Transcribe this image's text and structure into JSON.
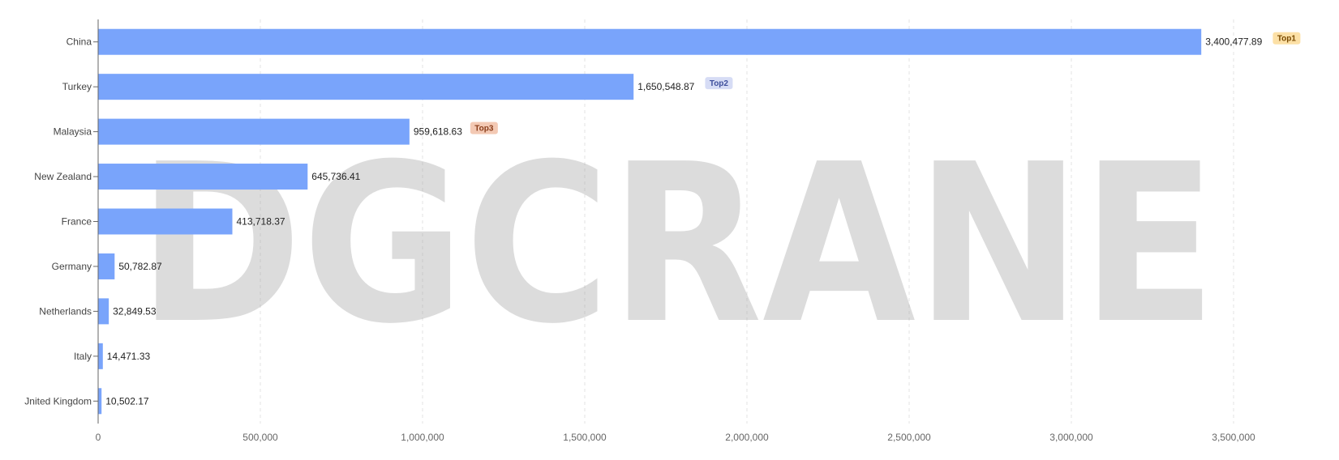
{
  "chart_data": {
    "type": "bar",
    "orientation": "horizontal",
    "categories": [
      "China",
      "Turkey",
      "Malaysia",
      "New Zealand",
      "France",
      "Germany",
      "Netherlands",
      "Italy",
      "Jnited Kingdom"
    ],
    "values": [
      3400477.89,
      1650548.87,
      959618.63,
      645736.41,
      413718.37,
      50782.87,
      32849.53,
      14471.33,
      10502.17
    ],
    "value_labels": [
      "3,400,477.89",
      "1,650,548.87",
      "959,618.63",
      "645,736.41",
      "413,718.37",
      "50,782.87",
      "32,849.53",
      "14,471.33",
      "10,502.17"
    ],
    "badges": [
      {
        "category": "China",
        "text": "Top1",
        "bg": "#fce0a6",
        "fg": "#7a4a00"
      },
      {
        "category": "Turkey",
        "text": "Top2",
        "bg": "#d6dcf5",
        "fg": "#3e4f9c"
      },
      {
        "category": "Malaysia",
        "text": "Top3",
        "bg": "#f3c9b4",
        "fg": "#8a3d1a"
      }
    ],
    "xticks": [
      "0",
      "500,000",
      "1,000,000",
      "1,500,000",
      "2,000,000",
      "2,500,000",
      "3,000,000",
      "3,500,000"
    ],
    "xtick_values": [
      0,
      500000,
      1000000,
      1500000,
      2000000,
      2500000,
      3000000,
      3500000
    ],
    "xlim": [
      0,
      3750000
    ],
    "grid": true,
    "bar_color": "#79a4fb",
    "title": "",
    "xlabel": "",
    "ylabel": ""
  },
  "watermark": {
    "text": "DGCRANE"
  }
}
